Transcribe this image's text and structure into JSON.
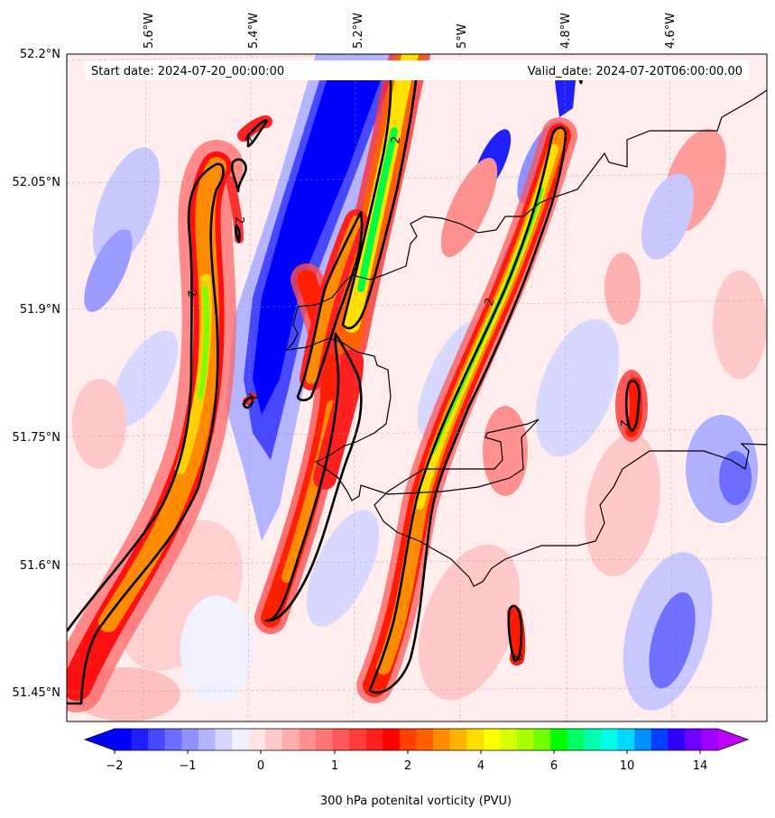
{
  "map": {
    "start_label": "Start date: 2024-07-20_00:00:00",
    "valid_label": "Valid_date: 2024-07-20T06:00:00.00",
    "lon_ticks": [
      "5.6°W",
      "5.4°W",
      "5.2°W",
      "5°W",
      "4.8°W",
      "4.6°W"
    ],
    "lat_ticks": [
      "52.2°N",
      "52.05°N",
      "51.9°N",
      "51.75°N",
      "51.6°N",
      "51.45°N"
    ],
    "contour_level_label": "2"
  },
  "colorbar": {
    "title": "300 hPa potenital vorticity (PVU)",
    "tick_labels": [
      "−2",
      "−1",
      "0",
      "1",
      "2",
      "4",
      "6",
      "10",
      "14"
    ],
    "colors": [
      "#0000ff",
      "#2020ff",
      "#4848ff",
      "#6c6cff",
      "#9090ff",
      "#b4b4ff",
      "#d8d8ff",
      "#f0f0ff",
      "#ffe4e4",
      "#ffc8c8",
      "#ffacac",
      "#ff9090",
      "#ff7474",
      "#ff5858",
      "#ff3c3c",
      "#ff2020",
      "#ff0000",
      "#ff4000",
      "#ff6000",
      "#ff8c00",
      "#ffb400",
      "#ffdc00",
      "#ffff00",
      "#d8ff00",
      "#a8ff00",
      "#70ff00",
      "#00ff00",
      "#00ff60",
      "#00ffb0",
      "#00ffe8",
      "#00d8ff",
      "#0090ff",
      "#0040ff",
      "#3000ff",
      "#7000ff",
      "#a000ff"
    ],
    "under_color": "#0000ff",
    "over_color": "#c000ff"
  }
}
